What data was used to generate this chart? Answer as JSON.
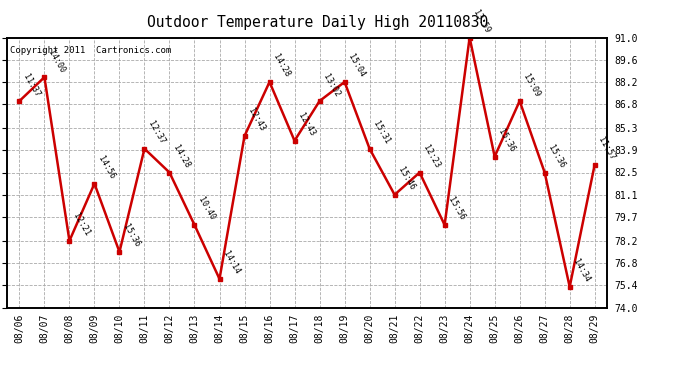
{
  "title": "Outdoor Temperature Daily High 20110830",
  "copyright": "Copyright 2011  Cartronics.com",
  "background_color": "#ffffff",
  "plot_background": "#ffffff",
  "line_color": "#cc0000",
  "marker_color": "#cc0000",
  "grid_color": "#aaaaaa",
  "dates": [
    "08/06",
    "08/07",
    "08/08",
    "08/09",
    "08/10",
    "08/11",
    "08/12",
    "08/13",
    "08/14",
    "08/15",
    "08/16",
    "08/17",
    "08/18",
    "08/19",
    "08/20",
    "08/21",
    "08/22",
    "08/23",
    "08/24",
    "08/25",
    "08/26",
    "08/27",
    "08/28",
    "08/29"
  ],
  "values": [
    87.0,
    88.5,
    78.2,
    81.8,
    77.5,
    84.0,
    82.5,
    79.2,
    75.8,
    84.8,
    88.2,
    84.5,
    87.0,
    88.2,
    84.0,
    81.1,
    82.5,
    79.2,
    91.0,
    83.5,
    87.0,
    82.5,
    75.3,
    83.0
  ],
  "labels": [
    "11:37",
    "14:00",
    "12:21",
    "14:56",
    "15:36",
    "12:37",
    "14:28",
    "10:40",
    "14:14",
    "12:43",
    "14:28",
    "12:43",
    "13:02",
    "15:04",
    "15:31",
    "15:46",
    "12:23",
    "15:56",
    "13:59",
    "15:36",
    "15:09",
    "15:36",
    "14:34",
    "11:57"
  ],
  "ylim": [
    74.0,
    91.0
  ],
  "yticks": [
    74.0,
    75.4,
    76.8,
    78.2,
    79.7,
    81.1,
    82.5,
    83.9,
    85.3,
    86.8,
    88.2,
    89.6,
    91.0
  ],
  "label_fontsize": 6.0,
  "tick_fontsize": 7.0,
  "title_fontsize": 10.5,
  "copyright_fontsize": 6.5
}
